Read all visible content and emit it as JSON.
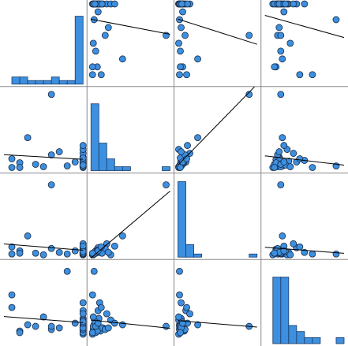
{
  "chart_data": {
    "type": "scatter_matrix",
    "color": "#3d8fdf",
    "variables": [
      {
        "lim": [
          0,
          10
        ],
        "values": [
          10,
          10,
          10,
          10,
          10,
          10,
          10,
          10,
          10,
          10,
          10,
          10,
          10,
          10,
          10,
          10,
          10,
          10,
          1,
          2,
          3,
          4,
          5,
          6,
          7,
          8,
          9,
          1,
          2,
          6
        ]
      },
      {
        "lim": [
          0,
          100
        ],
        "values": [
          2,
          3,
          5,
          8,
          10,
          12,
          15,
          4,
          6,
          9,
          20,
          25,
          3,
          7,
          11,
          14,
          30,
          5,
          2,
          8,
          40,
          6,
          3,
          18,
          22,
          4,
          9,
          13,
          2,
          95
        ]
      },
      {
        "lim": [
          0,
          100
        ],
        "values": [
          1,
          2,
          3,
          5,
          4,
          8,
          6,
          2,
          3,
          10,
          15,
          1,
          2,
          7,
          4,
          3,
          12,
          5,
          2,
          6,
          25,
          3,
          1,
          9,
          4,
          2,
          6,
          11,
          3,
          90
        ]
      },
      {
        "lim": [
          0,
          50
        ],
        "values": [
          5,
          8,
          10,
          12,
          15,
          7,
          9,
          11,
          6,
          20,
          18,
          14,
          10,
          8,
          25,
          9,
          12,
          13,
          30,
          7,
          11,
          10,
          16,
          8,
          9,
          45,
          12,
          22,
          6,
          10
        ]
      }
    ],
    "histograms": [
      {
        "bins": [
          0,
          1,
          2,
          3,
          4,
          5,
          6,
          7,
          8,
          9,
          10
        ],
        "counts": [
          0,
          2,
          2,
          1,
          1,
          1,
          2,
          1,
          1,
          19
        ],
        "ylim": [
          0,
          22
        ]
      },
      {
        "bins": [
          0,
          10,
          20,
          30,
          40,
          50,
          60,
          70,
          80,
          90,
          100
        ],
        "counts": [
          17,
          7,
          3,
          1,
          1,
          0,
          0,
          0,
          0,
          1
        ],
        "ylim": [
          0,
          20
        ]
      },
      {
        "bins": [
          0,
          10,
          20,
          30,
          40,
          50,
          60,
          70,
          80,
          90,
          100
        ],
        "counts": [
          24,
          4,
          1,
          0,
          0,
          0,
          0,
          0,
          0,
          1
        ],
        "ylim": [
          0,
          25
        ]
      },
      {
        "bins": [
          0,
          5,
          10,
          15,
          20,
          25,
          30,
          35,
          40,
          45,
          50
        ],
        "counts": [
          0,
          11,
          11,
          3,
          2,
          1,
          1,
          0,
          0,
          1
        ],
        "ylim": [
          0,
          13
        ]
      }
    ]
  }
}
